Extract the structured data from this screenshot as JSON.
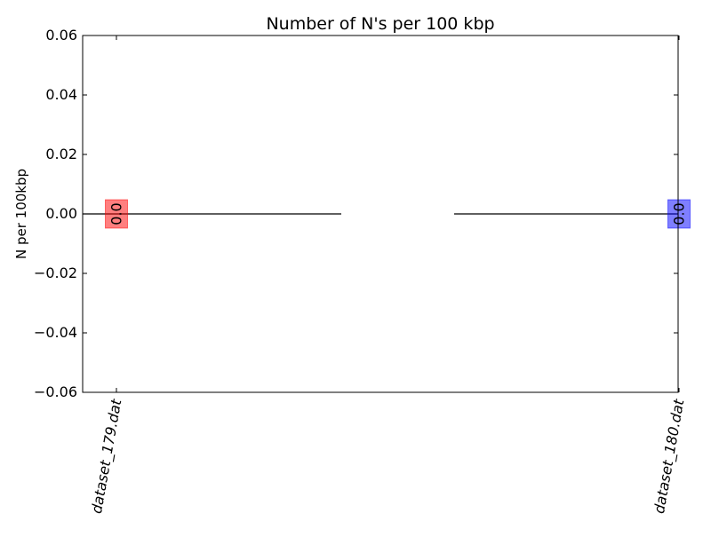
{
  "chart_data": {
    "type": "bar",
    "title": "Number of N's per 100 kbp",
    "ylabel": "N per 100kbp",
    "xlabel": "",
    "categories": [
      "dataset_179.dat",
      "dataset_180.dat"
    ],
    "values": [
      0.0,
      0.0
    ],
    "data_labels": [
      "0.0",
      "0.0"
    ],
    "colors": [
      "#ff0000",
      "#0000ff"
    ],
    "ylim": [
      -0.06,
      0.06
    ],
    "yticks": [
      -0.06,
      -0.04,
      -0.02,
      0.0,
      0.02,
      0.04,
      0.06
    ],
    "ytick_labels": [
      "−0.06",
      "−0.04",
      "−0.02",
      "0.00",
      "0.02",
      "0.04",
      "0.06"
    ],
    "grid": false,
    "legend": "none"
  }
}
